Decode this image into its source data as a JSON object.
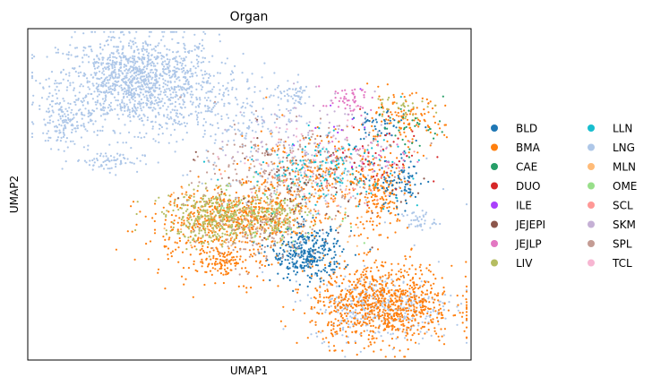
{
  "chart_data": {
    "type": "scatter",
    "title": "Organ",
    "xlabel": "UMAP1",
    "ylabel": "UMAP2",
    "xlim": [
      0,
      100
    ],
    "ylim": [
      0,
      100
    ],
    "grid": false,
    "legend_placement": "right",
    "legend": [
      {
        "name": "BLD",
        "color": "#1f77b4"
      },
      {
        "name": "BMA",
        "color": "#ff7f0e"
      },
      {
        "name": "CAE",
        "color": "#279e68"
      },
      {
        "name": "DUO",
        "color": "#d62728"
      },
      {
        "name": "ILE",
        "color": "#aa40fc"
      },
      {
        "name": "JEJEPI",
        "color": "#8c564b"
      },
      {
        "name": "JEJLP",
        "color": "#e377c2"
      },
      {
        "name": "LIV",
        "color": "#b5bd61"
      },
      {
        "name": "LLN",
        "color": "#17becf"
      },
      {
        "name": "LNG",
        "color": "#aec7e8"
      },
      {
        "name": "MLN",
        "color": "#ffbb78"
      },
      {
        "name": "OME",
        "color": "#98df8a"
      },
      {
        "name": "SCL",
        "color": "#ff9896"
      },
      {
        "name": "SKM",
        "color": "#c5b0d5"
      },
      {
        "name": "SPL",
        "color": "#c49c94"
      },
      {
        "name": "TCL",
        "color": "#f7b6d2"
      }
    ],
    "clusters": [
      {
        "series": "LNG",
        "center": [
          25,
          84
        ],
        "spread": [
          9,
          7
        ],
        "count": 1300
      },
      {
        "series": "LNG",
        "center": [
          8,
          72
        ],
        "spread": [
          3,
          4
        ],
        "count": 140
      },
      {
        "series": "LNG",
        "center": [
          18,
          60
        ],
        "spread": [
          4,
          1.5
        ],
        "count": 70
      },
      {
        "series": "LNG",
        "center": [
          45,
          74
        ],
        "spread": [
          8,
          6
        ],
        "count": 180
      },
      {
        "series": "LNG",
        "center": [
          80,
          16
        ],
        "spread": [
          8,
          5
        ],
        "count": 360
      },
      {
        "series": "LNG",
        "center": [
          88,
          42
        ],
        "spread": [
          2,
          1.5
        ],
        "count": 40
      },
      {
        "series": "LNG",
        "center": [
          60,
          55
        ],
        "spread": [
          12,
          8
        ],
        "count": 140
      },
      {
        "series": "LNG",
        "center": [
          60,
          80
        ],
        "spread": [
          2,
          2
        ],
        "count": 50
      },
      {
        "series": "BMA",
        "center": [
          80,
          17
        ],
        "spread": [
          8,
          6
        ],
        "count": 900
      },
      {
        "series": "BMA",
        "center": [
          48,
          43
        ],
        "spread": [
          7,
          4
        ],
        "count": 360
      },
      {
        "series": "BMA",
        "center": [
          43,
          38
        ],
        "spread": [
          9,
          7
        ],
        "count": 280
      },
      {
        "series": "BMA",
        "center": [
          65,
          55
        ],
        "spread": [
          9,
          8
        ],
        "count": 260
      },
      {
        "series": "BMA",
        "center": [
          84,
          72
        ],
        "spread": [
          5,
          4
        ],
        "count": 130
      },
      {
        "series": "BMA",
        "center": [
          80,
          50
        ],
        "spread": [
          3,
          5
        ],
        "count": 150
      },
      {
        "series": "BMA",
        "center": [
          44,
          30
        ],
        "spread": [
          3,
          2
        ],
        "count": 80
      },
      {
        "series": "BLD",
        "center": [
          63,
          32
        ],
        "spread": [
          4,
          4
        ],
        "count": 340
      },
      {
        "series": "BLD",
        "center": [
          84,
          53
        ],
        "spread": [
          3,
          4
        ],
        "count": 90
      },
      {
        "series": "BLD",
        "center": [
          79,
          70
        ],
        "spread": [
          3,
          3
        ],
        "count": 50
      },
      {
        "series": "LIV",
        "center": [
          43,
          43
        ],
        "spread": [
          6,
          4
        ],
        "count": 380
      },
      {
        "series": "LIV",
        "center": [
          56,
          44
        ],
        "spread": [
          4,
          3
        ],
        "count": 110
      },
      {
        "series": "LIV",
        "center": [
          84,
          77
        ],
        "spread": [
          3,
          2
        ],
        "count": 30
      },
      {
        "series": "SPL",
        "center": [
          58,
          57
        ],
        "spread": [
          10,
          7
        ],
        "count": 260
      },
      {
        "series": "SPL",
        "center": [
          52,
          38
        ],
        "spread": [
          6,
          5
        ],
        "count": 120
      },
      {
        "series": "LLN",
        "center": [
          67,
          58
        ],
        "spread": [
          9,
          5
        ],
        "count": 160
      },
      {
        "series": "JEJEPI",
        "center": [
          62,
          52
        ],
        "spread": [
          10,
          8
        ],
        "count": 90
      },
      {
        "series": "JEJLP",
        "center": [
          72,
          78
        ],
        "spread": [
          3,
          2
        ],
        "count": 50
      },
      {
        "series": "JEJLP",
        "center": [
          78,
          62
        ],
        "spread": [
          5,
          3
        ],
        "count": 40
      },
      {
        "series": "SKM",
        "center": [
          62,
          68
        ],
        "spread": [
          8,
          6
        ],
        "count": 90
      },
      {
        "series": "DUO",
        "center": [
          82,
          62
        ],
        "spread": [
          6,
          6
        ],
        "count": 40
      },
      {
        "series": "CAE",
        "center": [
          86,
          70
        ],
        "spread": [
          4,
          4
        ],
        "count": 35
      },
      {
        "series": "MLN",
        "center": [
          58,
          45
        ],
        "spread": [
          10,
          8
        ],
        "count": 90
      },
      {
        "series": "OME",
        "center": [
          57,
          44
        ],
        "spread": [
          8,
          5
        ],
        "count": 60
      },
      {
        "series": "SCL",
        "center": [
          70,
          55
        ],
        "spread": [
          9,
          6
        ],
        "count": 40
      },
      {
        "series": "TCL",
        "center": [
          62,
          60
        ],
        "spread": [
          10,
          8
        ],
        "count": 40
      },
      {
        "series": "ILE",
        "center": [
          70,
          70
        ],
        "spread": [
          6,
          5
        ],
        "count": 10
      }
    ]
  }
}
